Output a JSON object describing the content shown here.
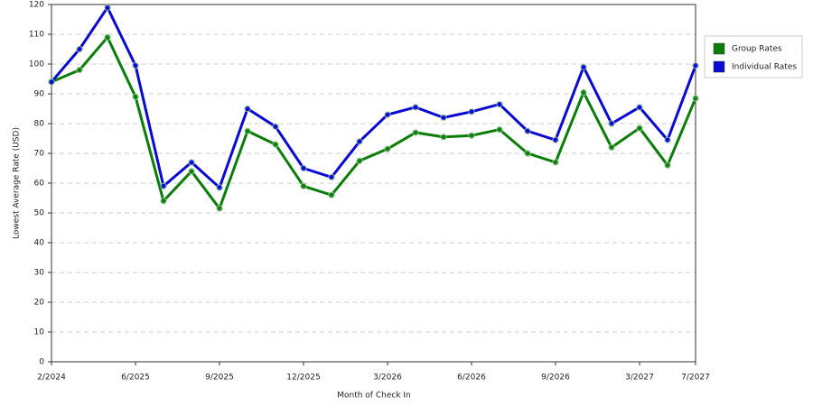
{
  "chart_data": {
    "type": "line",
    "x_label": "Month of Check In",
    "y_label": "Lowest Average Rate (USD)",
    "categories": [
      "2/2024",
      null,
      null,
      "6/2025",
      null,
      null,
      "9/2025",
      null,
      null,
      "12/2025",
      null,
      null,
      "3/2026",
      null,
      null,
      "6/2026",
      null,
      null,
      "9/2026",
      null,
      null,
      "3/2027",
      null,
      "7/2027"
    ],
    "series": [
      {
        "name": "Group Rates",
        "color": "#0a7d0a",
        "values": [
          94,
          98,
          109,
          89,
          54,
          64,
          51.5,
          77.5,
          73,
          59,
          56,
          67.5,
          71.5,
          77,
          75.5,
          76,
          78,
          70,
          67,
          90.5,
          72,
          78.5,
          66,
          88.5
        ]
      },
      {
        "name": "Individual Rates",
        "color": "#0a0ad0",
        "values": [
          94,
          105,
          119,
          99.5,
          59,
          67,
          58.5,
          85,
          79,
          65,
          62,
          74,
          83,
          85.5,
          82,
          84,
          86.5,
          77.5,
          74.5,
          99,
          80,
          85.5,
          74.5,
          99.5
        ]
      }
    ],
    "ylim": [
      0,
      120
    ],
    "yticks": [
      0,
      10,
      20,
      30,
      40,
      50,
      60,
      70,
      80,
      90,
      100,
      110,
      120
    ],
    "grid": true,
    "legend": "right"
  }
}
